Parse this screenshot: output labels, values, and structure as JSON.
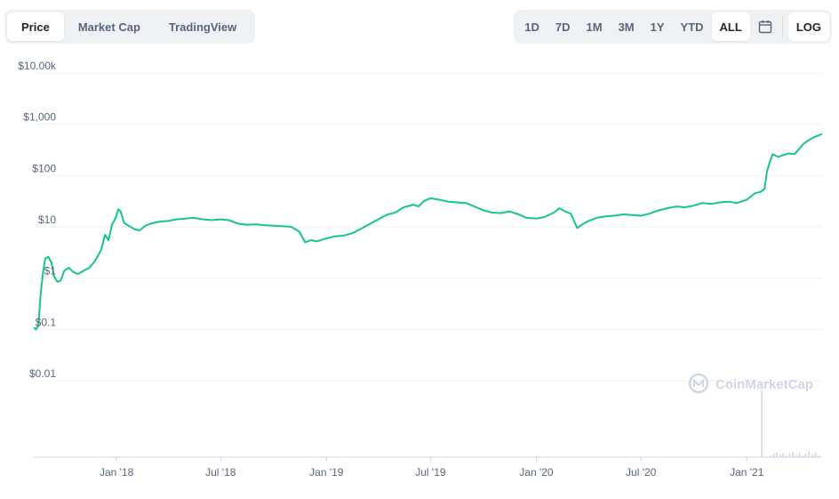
{
  "tabs": [
    {
      "label": "Price",
      "active": true
    },
    {
      "label": "Market Cap",
      "active": false
    },
    {
      "label": "TradingView",
      "active": false
    }
  ],
  "ranges": [
    {
      "label": "1D",
      "active": false
    },
    {
      "label": "7D",
      "active": false
    },
    {
      "label": "1M",
      "active": false
    },
    {
      "label": "3M",
      "active": false
    },
    {
      "label": "1Y",
      "active": false
    },
    {
      "label": "YTD",
      "active": false
    },
    {
      "label": "ALL",
      "active": true
    }
  ],
  "calendar_icon": "calendar-icon",
  "log_label": "LOG",
  "watermark": "CoinMarketCap",
  "colors": {
    "line": "#16c784",
    "grid": "#eff2f5",
    "axis": "#cfd6e4",
    "volume": "#cfd6e4"
  },
  "chart_data": {
    "type": "line",
    "title": "",
    "xlabel": "",
    "ylabel": "",
    "yscale": "log",
    "ylim": [
      0.01,
      10000
    ],
    "xlim": [
      "2017-08-10",
      "2021-05-12"
    ],
    "grid": true,
    "yticks": [
      {
        "value": 10000,
        "label": "$10.00k"
      },
      {
        "value": 1000,
        "label": "$1,000"
      },
      {
        "value": 100,
        "label": "$100"
      },
      {
        "value": 10,
        "label": "$10"
      },
      {
        "value": 1,
        "label": "$1"
      },
      {
        "value": 0.1,
        "label": "$0.1"
      },
      {
        "value": 0.01,
        "label": "$0.01"
      }
    ],
    "xticks": [
      {
        "date": "2018-01-01",
        "label": "Jan '18"
      },
      {
        "date": "2018-07-01",
        "label": "Jul '18"
      },
      {
        "date": "2019-01-01",
        "label": "Jan '19"
      },
      {
        "date": "2019-07-01",
        "label": "Jul '19"
      },
      {
        "date": "2020-01-01",
        "label": "Jan '20"
      },
      {
        "date": "2020-07-01",
        "label": "Jul '20"
      },
      {
        "date": "2021-01-01",
        "label": "Jan '21"
      }
    ],
    "series": [
      {
        "values": [
          [
            "2017-08-10",
            0.11
          ],
          [
            "2017-08-14",
            0.1
          ],
          [
            "2017-08-18",
            0.12
          ],
          [
            "2017-08-22",
            0.5
          ],
          [
            "2017-08-26",
            1.3
          ],
          [
            "2017-08-30",
            2.4
          ],
          [
            "2017-09-04",
            2.6
          ],
          [
            "2017-09-10",
            2.0
          ],
          [
            "2017-09-14",
            1.1
          ],
          [
            "2017-09-20",
            0.85
          ],
          [
            "2017-09-26",
            0.9
          ],
          [
            "2017-10-02",
            1.4
          ],
          [
            "2017-10-10",
            1.6
          ],
          [
            "2017-10-18",
            1.3
          ],
          [
            "2017-10-26",
            1.2
          ],
          [
            "2017-11-05",
            1.4
          ],
          [
            "2017-11-15",
            1.6
          ],
          [
            "2017-11-25",
            2.2
          ],
          [
            "2017-12-05",
            3.5
          ],
          [
            "2017-12-12",
            7.0
          ],
          [
            "2017-12-18",
            5.5
          ],
          [
            "2017-12-24",
            11.0
          ],
          [
            "2017-12-30",
            14.5
          ],
          [
            "2018-01-04",
            22.0
          ],
          [
            "2018-01-08",
            20.0
          ],
          [
            "2018-01-14",
            12.0
          ],
          [
            "2018-01-22",
            10.5
          ],
          [
            "2018-02-01",
            9.0
          ],
          [
            "2018-02-10",
            8.5
          ],
          [
            "2018-02-20",
            10.5
          ],
          [
            "2018-03-01",
            11.5
          ],
          [
            "2018-03-15",
            12.5
          ],
          [
            "2018-04-01",
            13.0
          ],
          [
            "2018-04-15",
            14.0
          ],
          [
            "2018-05-01",
            14.5
          ],
          [
            "2018-05-15",
            15.0
          ],
          [
            "2018-06-01",
            14.0
          ],
          [
            "2018-06-15",
            13.5
          ],
          [
            "2018-07-01",
            14.0
          ],
          [
            "2018-07-15",
            13.5
          ],
          [
            "2018-08-01",
            11.5
          ],
          [
            "2018-08-15",
            11.0
          ],
          [
            "2018-09-01",
            11.2
          ],
          [
            "2018-09-15",
            10.8
          ],
          [
            "2018-10-01",
            10.5
          ],
          [
            "2018-10-15",
            10.3
          ],
          [
            "2018-11-01",
            10.0
          ],
          [
            "2018-11-15",
            8.0
          ],
          [
            "2018-11-25",
            5.0
          ],
          [
            "2018-12-05",
            5.5
          ],
          [
            "2018-12-15",
            5.2
          ],
          [
            "2018-12-28",
            5.8
          ],
          [
            "2019-01-15",
            6.5
          ],
          [
            "2019-02-01",
            6.8
          ],
          [
            "2019-02-15",
            7.5
          ],
          [
            "2019-03-01",
            9.0
          ],
          [
            "2019-03-15",
            11.0
          ],
          [
            "2019-04-01",
            14.0
          ],
          [
            "2019-04-15",
            17.0
          ],
          [
            "2019-05-01",
            19.0
          ],
          [
            "2019-05-15",
            24.0
          ],
          [
            "2019-06-01",
            27.0
          ],
          [
            "2019-06-10",
            25.0
          ],
          [
            "2019-06-20",
            32.0
          ],
          [
            "2019-07-01",
            36.0
          ],
          [
            "2019-07-15",
            34.0
          ],
          [
            "2019-08-01",
            31.0
          ],
          [
            "2019-08-15",
            30.0
          ],
          [
            "2019-09-01",
            29.0
          ],
          [
            "2019-09-15",
            25.0
          ],
          [
            "2019-10-01",
            21.0
          ],
          [
            "2019-10-15",
            19.0
          ],
          [
            "2019-11-01",
            18.5
          ],
          [
            "2019-11-15",
            20.0
          ],
          [
            "2019-12-01",
            17.5
          ],
          [
            "2019-12-15",
            15.0
          ],
          [
            "2020-01-01",
            14.5
          ],
          [
            "2020-01-15",
            15.5
          ],
          [
            "2020-02-01",
            19.0
          ],
          [
            "2020-02-10",
            23.0
          ],
          [
            "2020-02-20",
            20.0
          ],
          [
            "2020-03-01",
            18.0
          ],
          [
            "2020-03-12",
            9.5
          ],
          [
            "2020-03-20",
            11.0
          ],
          [
            "2020-04-01",
            13.0
          ],
          [
            "2020-04-15",
            15.0
          ],
          [
            "2020-05-01",
            16.0
          ],
          [
            "2020-05-15",
            16.5
          ],
          [
            "2020-06-01",
            17.5
          ],
          [
            "2020-06-15",
            17.0
          ],
          [
            "2020-07-01",
            16.5
          ],
          [
            "2020-07-15",
            18.0
          ],
          [
            "2020-08-01",
            21.0
          ],
          [
            "2020-08-15",
            23.0
          ],
          [
            "2020-09-01",
            25.0
          ],
          [
            "2020-09-15",
            24.0
          ],
          [
            "2020-10-01",
            26.0
          ],
          [
            "2020-10-15",
            29.0
          ],
          [
            "2020-11-01",
            28.0
          ],
          [
            "2020-11-15",
            30.0
          ],
          [
            "2020-12-01",
            31.0
          ],
          [
            "2020-12-15",
            29.0
          ],
          [
            "2021-01-01",
            34.0
          ],
          [
            "2021-01-15",
            45.0
          ],
          [
            "2021-01-25",
            48.0
          ],
          [
            "2021-02-01",
            55.0
          ],
          [
            "2021-02-05",
            120.0
          ],
          [
            "2021-02-10",
            180.0
          ],
          [
            "2021-02-15",
            260.0
          ],
          [
            "2021-02-25",
            230.0
          ],
          [
            "2021-03-05",
            250.0
          ],
          [
            "2021-03-15",
            270.0
          ],
          [
            "2021-03-25",
            260.0
          ],
          [
            "2021-04-01",
            320.0
          ],
          [
            "2021-04-10",
            420.0
          ],
          [
            "2021-04-20",
            500.0
          ],
          [
            "2021-04-28",
            560.0
          ],
          [
            "2021-05-05",
            600.0
          ],
          [
            "2021-05-12",
            650.0
          ]
        ]
      }
    ]
  }
}
